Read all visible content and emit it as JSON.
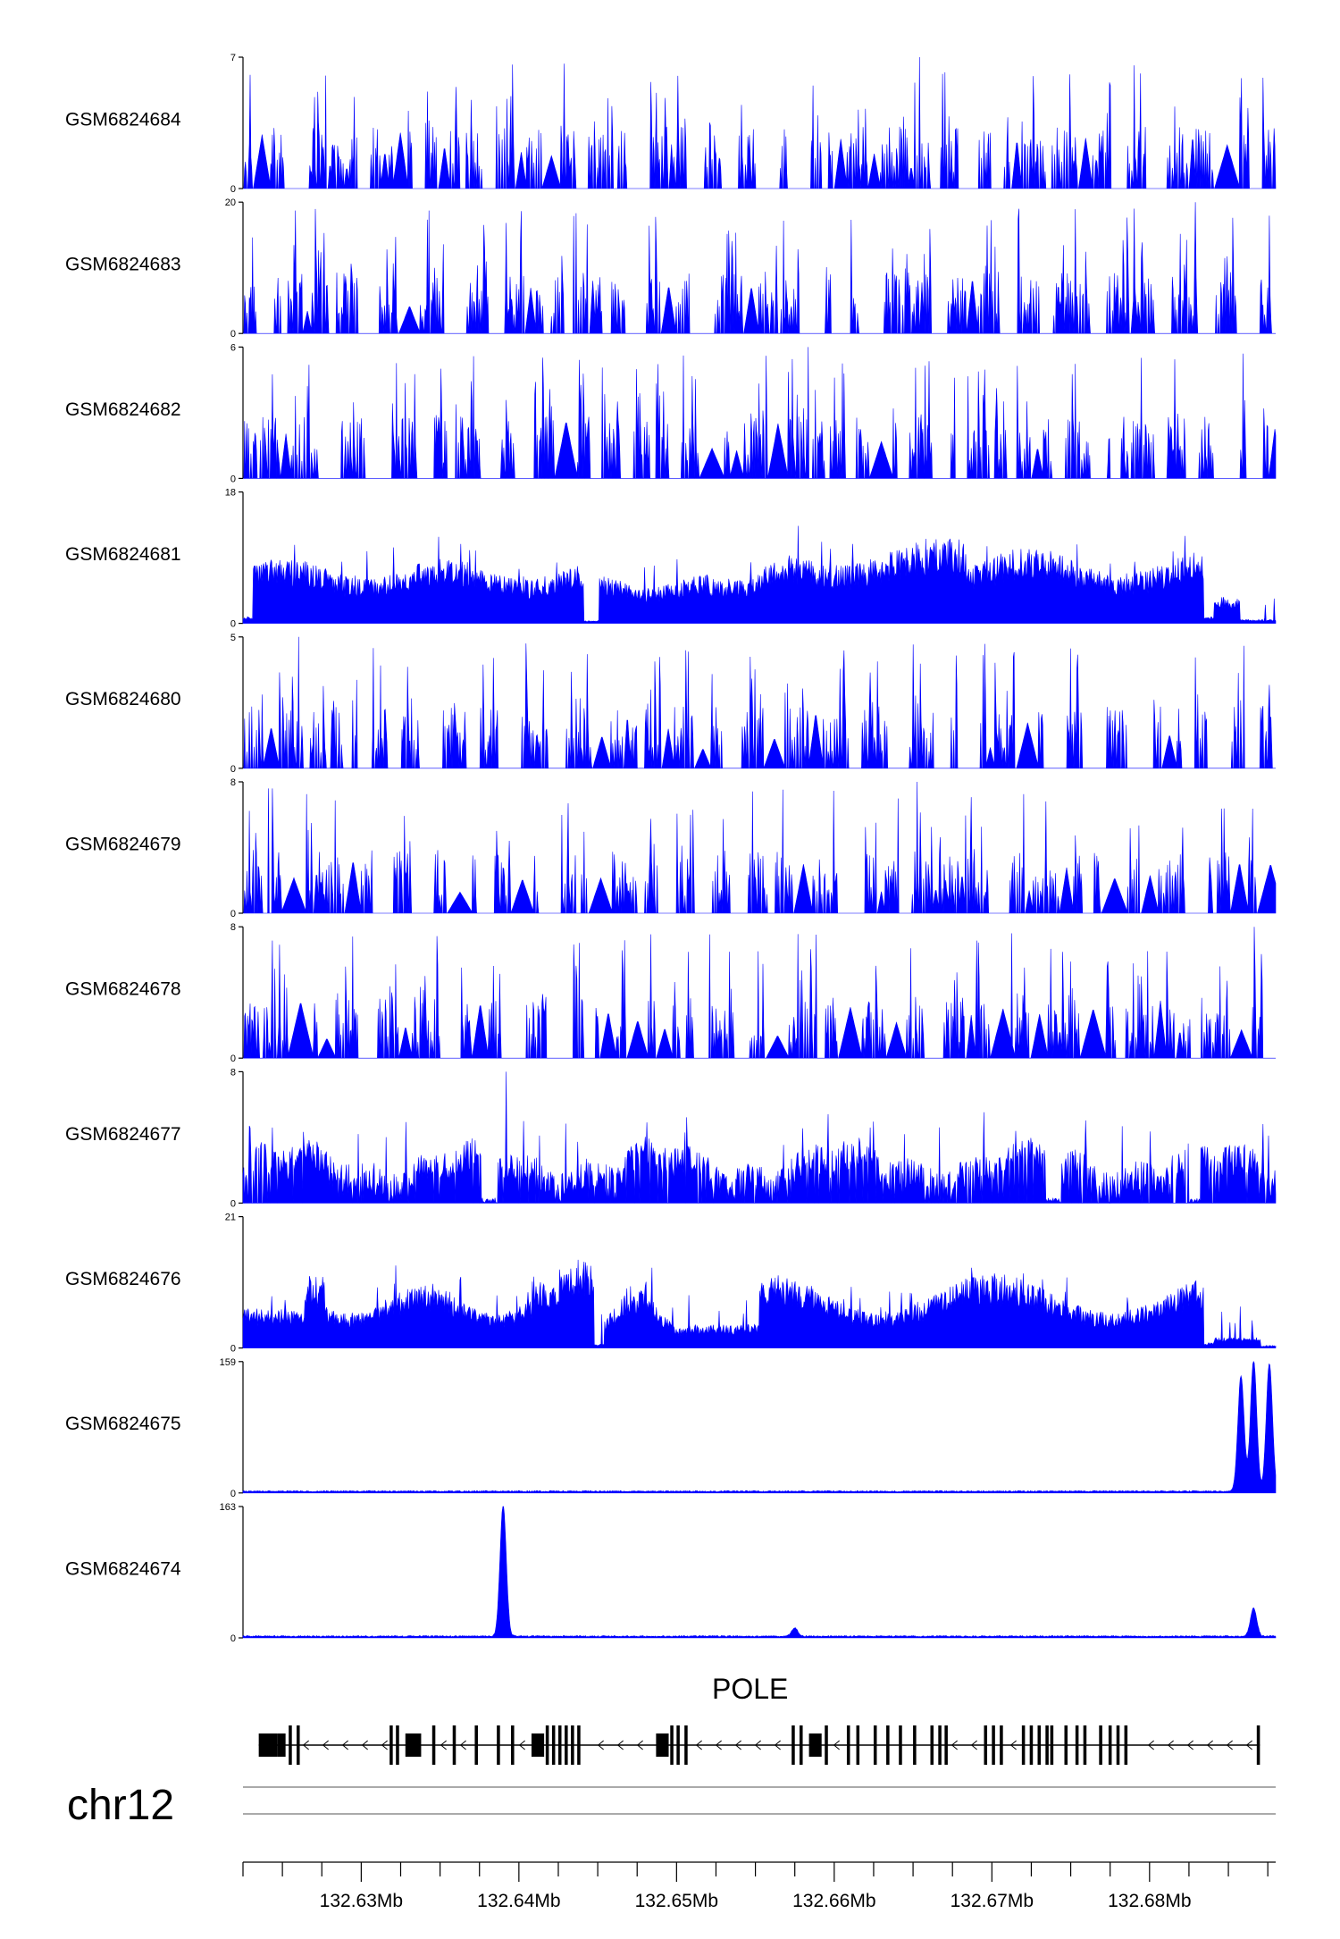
{
  "chart_data": {
    "type": "area",
    "chromosome": "chr12",
    "gene": {
      "name": "POLE",
      "strand": "-",
      "start_mb": 132.6235,
      "end_mb": 132.687
    },
    "xaxis": {
      "range_mb": [
        132.6225,
        132.688
      ],
      "tick_labels": [
        "132.63Mb",
        "132.64Mb",
        "132.65Mb",
        "132.66Mb",
        "132.67Mb",
        "132.68Mb"
      ],
      "tick_values_mb": [
        132.63,
        132.64,
        132.65,
        132.66,
        132.67,
        132.68
      ],
      "minor_tick_step_mb": 0.0025
    },
    "series": [
      {
        "name": "GSM6824684",
        "ymax": 7,
        "ymax_label": "7",
        "ymin_label": "0",
        "profile": "sparse"
      },
      {
        "name": "GSM6824683",
        "ymax": 20,
        "ymax_label": "20",
        "ymin_label": "0",
        "profile": "sparse"
      },
      {
        "name": "GSM6824682",
        "ymax": 6,
        "ymax_label": "6",
        "ymin_label": "0",
        "profile": "sparse"
      },
      {
        "name": "GSM6824681",
        "ymax": 18,
        "ymax_label": "18",
        "ymin_label": "0",
        "profile": "dense"
      },
      {
        "name": "GSM6824680",
        "ymax": 5,
        "ymax_label": "5",
        "ymin_label": "0",
        "profile": "sparse"
      },
      {
        "name": "GSM6824679",
        "ymax": 8,
        "ymax_label": "8",
        "ymin_label": "0",
        "profile": "sparse"
      },
      {
        "name": "GSM6824678",
        "ymax": 8,
        "ymax_label": "8",
        "ymin_label": "0",
        "profile": "sparse"
      },
      {
        "name": "GSM6824677",
        "ymax": 8,
        "ymax_label": "8",
        "ymin_label": "0",
        "profile": "medium"
      },
      {
        "name": "GSM6824676",
        "ymax": 21,
        "ymax_label": "21",
        "ymin_label": "0",
        "profile": "dense"
      },
      {
        "name": "GSM6824675",
        "ymax": 159,
        "ymax_label": "159",
        "ymin_label": "0",
        "peaks": [
          {
            "pos_mb": 132.6858,
            "height": 140
          },
          {
            "pos_mb": 132.6866,
            "height": 159
          },
          {
            "pos_mb": 132.6876,
            "height": 155
          }
        ]
      },
      {
        "name": "GSM6824674",
        "ymax": 163,
        "ymax_label": "163",
        "ymin_label": "0",
        "peaks": [
          {
            "pos_mb": 132.639,
            "height": 163
          },
          {
            "pos_mb": 132.6575,
            "height": 10
          },
          {
            "pos_mb": 132.6866,
            "height": 35
          }
        ]
      }
    ]
  }
}
